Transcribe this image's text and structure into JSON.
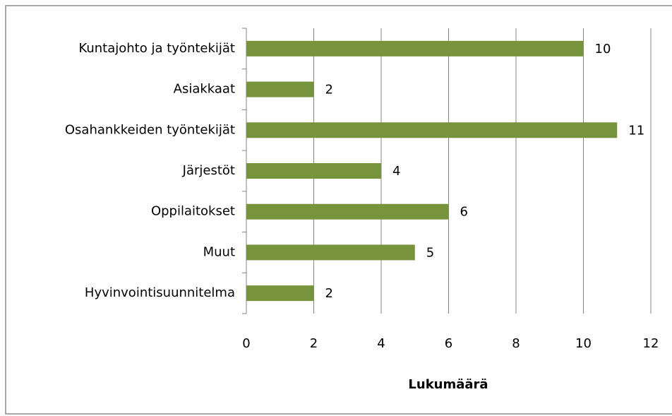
{
  "chart_data": {
    "type": "bar",
    "orientation": "horizontal",
    "categories": [
      "Kuntajohto ja työntekijät",
      "Asiakkaat",
      "Osahankkeiden työntekijät",
      "Järjestöt",
      "Oppilaitokset",
      "Muut",
      "Hyvinvointisuunnitelma"
    ],
    "values": [
      10,
      2,
      11,
      4,
      6,
      5,
      2
    ],
    "color": "#77933c",
    "xlabel": "Lukumäärä",
    "xlim": [
      0,
      12
    ],
    "xticks": [
      0,
      2,
      4,
      6,
      8,
      10,
      12
    ],
    "grid": true
  }
}
